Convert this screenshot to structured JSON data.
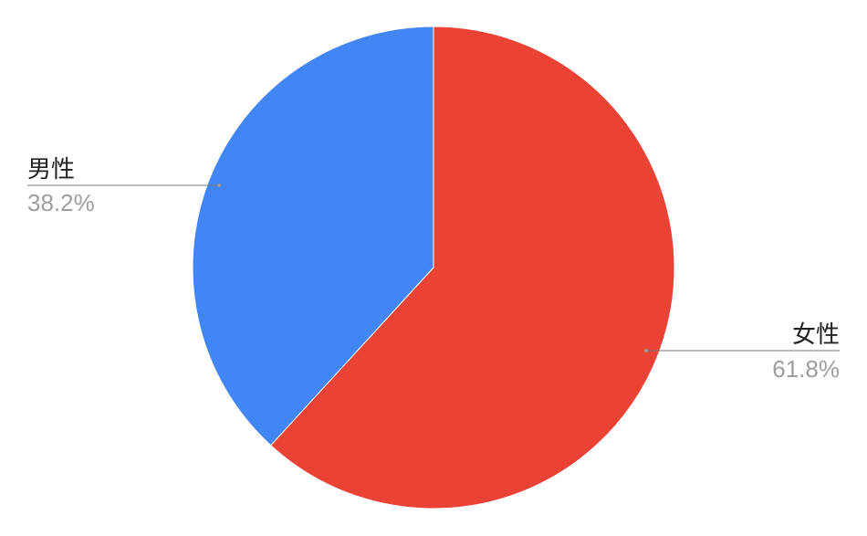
{
  "chart_data": {
    "type": "pie",
    "title": "",
    "start_angle": "top, clockwise",
    "slices": [
      {
        "label": "女性",
        "value": 61.8,
        "value_label": "61.8%",
        "color": "#EA4335"
      },
      {
        "label": "男性",
        "value": 38.2,
        "value_label": "38.2%",
        "color": "#4285F4"
      }
    ],
    "legend": "none (callout labels)"
  }
}
